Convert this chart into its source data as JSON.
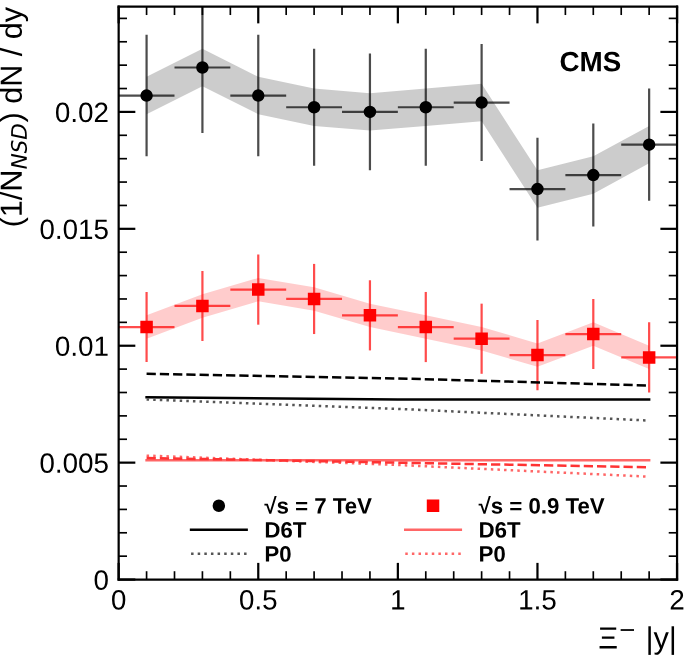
{
  "chart_data": {
    "type": "scatter",
    "xlabel": "Ξ$^{−}$ |y|",
    "ylabel": "(1/N$_{NSD}$) dN / dy",
    "annotations": [
      "CMS"
    ],
    "x": [
      0.1,
      0.3,
      0.5,
      0.7,
      0.9,
      1.1,
      1.3,
      1.5,
      1.7,
      1.9
    ],
    "xlim": [
      0,
      2
    ],
    "ylim": [
      0,
      0.0245
    ],
    "xticks": [
      0,
      0.5,
      1,
      1.5,
      2
    ],
    "yticks": [
      0,
      0.005,
      {
        "value": 0.01,
        "label": "0.01"
      },
      0.015,
      {
        "value": 0.02,
        "label": "0.02"
      }
    ],
    "grid": false,
    "legend": "bottom",
    "series": [
      {
        "name": "√s = 7 TeV",
        "marker": "circle",
        "color": "#000000",
        "values": [
          0.0207,
          0.0219,
          0.0207,
          0.0202,
          0.02,
          0.0202,
          0.0204,
          0.0167,
          0.0173,
          0.0186
        ],
        "errors": [
          0.0026,
          0.0028,
          0.0026,
          0.0025,
          0.0025,
          0.0025,
          0.0025,
          0.0022,
          0.0022,
          0.0024
        ],
        "xerrors": [
          0.1,
          0.1,
          0.1,
          0.1,
          0.1,
          0.1,
          0.1,
          0.1,
          0.1,
          0.1
        ],
        "lower": [
          0.0199,
          0.0211,
          0.0199,
          0.0194,
          0.0192,
          0.0194,
          0.0196,
          0.0159,
          0.0165,
          0.0178
        ],
        "upper": [
          0.0215,
          0.0227,
          0.0215,
          0.021,
          0.0208,
          0.021,
          0.0212,
          0.0175,
          0.0181,
          0.0194
        ]
      },
      {
        "name": "√s = 0.9 TeV",
        "marker": "square",
        "color": "#ff0000",
        "values": [
          0.0108,
          0.0117,
          0.0124,
          0.012,
          0.0113,
          0.0108,
          0.0103,
          0.0096,
          0.0105,
          0.0095
        ],
        "errors": [
          0.0015,
          0.0015,
          0.0015,
          0.0015,
          0.0015,
          0.0015,
          0.0015,
          0.0015,
          0.0015,
          0.0015
        ],
        "xerrors": [
          0.1,
          0.1,
          0.1,
          0.1,
          0.1,
          0.1,
          0.1,
          0.1,
          0.1,
          0.1
        ],
        "lower": [
          0.0103,
          0.0112,
          0.0119,
          0.0115,
          0.0108,
          0.0103,
          0.0098,
          0.0091,
          0.01,
          0.009
        ],
        "upper": [
          0.0113,
          0.0122,
          0.0129,
          0.0125,
          0.0118,
          0.0113,
          0.0108,
          0.0101,
          0.011,
          0.01
        ]
      },
      {
        "name": "D6T",
        "type": "line",
        "line_style": "solid",
        "color": "#000000",
        "x": [
          0.1,
          1.0,
          1.9
        ],
        "values": [
          0.0078,
          0.0077,
          0.0077
        ]
      },
      {
        "name": "D6T",
        "type": "line",
        "line_style": "solid",
        "color": "#ff6666",
        "x": [
          0.1,
          1.0,
          1.9
        ],
        "values": [
          0.0051,
          0.0051,
          0.0051
        ]
      },
      {
        "name": "P0",
        "type": "line",
        "line_style": "dotted",
        "color": "#555555",
        "x": [
          0.1,
          1.0,
          1.9
        ],
        "values": [
          0.0077,
          0.0073,
          0.0068
        ]
      },
      {
        "name": "P0",
        "type": "line",
        "line_style": "dotted",
        "color": "#ff6666",
        "x": [
          0.1,
          1.0,
          1.9
        ],
        "values": [
          0.0053,
          0.0049,
          0.0044
        ]
      },
      {
        "type": "line",
        "line_style": "dashed",
        "color": "#000000",
        "x": [
          0.1,
          1.0,
          1.9
        ],
        "values": [
          0.0088,
          0.0086,
          0.0083
        ]
      },
      {
        "type": "line",
        "line_style": "dashed",
        "color": "#ff3333",
        "x": [
          0.1,
          1.0,
          1.9
        ],
        "values": [
          0.0052,
          0.005,
          0.0048
        ]
      }
    ]
  }
}
